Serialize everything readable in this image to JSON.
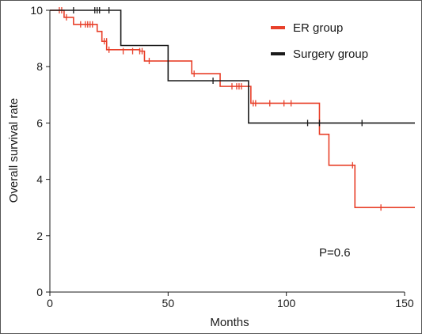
{
  "chart_data": {
    "type": "line",
    "step": true,
    "xlabel": "Months",
    "ylabel": "Overall survival rate",
    "xlim": [
      0,
      150
    ],
    "ylim": [
      0,
      10
    ],
    "xticks": [
      0,
      50,
      100,
      150
    ],
    "yticks": [
      0,
      2,
      4,
      6,
      8,
      10
    ],
    "grid": false,
    "legend_position": "top-right",
    "annotation": "P=0.6",
    "series": [
      {
        "name": "ER group",
        "color": "#e8402a",
        "steps": [
          [
            0,
            10
          ],
          [
            6,
            9.75
          ],
          [
            10,
            9.5
          ],
          [
            13,
            9.5
          ],
          [
            17,
            9.5
          ],
          [
            20,
            9.25
          ],
          [
            22,
            8.9
          ],
          [
            24,
            8.6
          ],
          [
            38,
            8.55
          ],
          [
            40,
            8.2
          ],
          [
            60,
            7.75
          ],
          [
            72,
            7.3
          ],
          [
            85,
            6.7
          ],
          [
            114,
            5.6
          ],
          [
            118,
            4.5
          ],
          [
            129,
            3.0
          ],
          [
            156,
            3.0
          ]
        ],
        "censored": [
          [
            4,
            10
          ],
          [
            5,
            10
          ],
          [
            7,
            9.75
          ],
          [
            13,
            9.5
          ],
          [
            15,
            9.5
          ],
          [
            16,
            9.5
          ],
          [
            17,
            9.5
          ],
          [
            18,
            9.5
          ],
          [
            23,
            8.9
          ],
          [
            24,
            8.9
          ],
          [
            25,
            8.6
          ],
          [
            31,
            8.55
          ],
          [
            35,
            8.55
          ],
          [
            38,
            8.55
          ],
          [
            39,
            8.55
          ],
          [
            42,
            8.2
          ],
          [
            61,
            7.75
          ],
          [
            77,
            7.3
          ],
          [
            79,
            7.3
          ],
          [
            80,
            7.3
          ],
          [
            81,
            7.3
          ],
          [
            86,
            6.7
          ],
          [
            87,
            6.7
          ],
          [
            93,
            6.7
          ],
          [
            99,
            6.7
          ],
          [
            102,
            6.7
          ],
          [
            128,
            4.5
          ],
          [
            140,
            3.0
          ]
        ]
      },
      {
        "name": "Surgery group",
        "color": "#1a1a1a",
        "steps": [
          [
            0,
            10
          ],
          [
            30,
            8.75
          ],
          [
            50,
            7.5
          ],
          [
            84,
            6.0
          ],
          [
            156,
            6.0
          ]
        ],
        "censored": [
          [
            10,
            10
          ],
          [
            19,
            10
          ],
          [
            20,
            10
          ],
          [
            21,
            10
          ],
          [
            25,
            10
          ],
          [
            69,
            7.5
          ],
          [
            109,
            6.0
          ],
          [
            114,
            6.0
          ],
          [
            132,
            6.0
          ]
        ]
      }
    ]
  }
}
